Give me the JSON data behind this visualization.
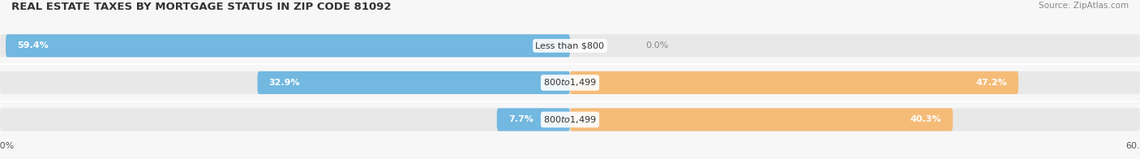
{
  "title": "REAL ESTATE TAXES BY MORTGAGE STATUS IN ZIP CODE 81092",
  "source": "Source: ZipAtlas.com",
  "categories": [
    "Less than $800",
    "$800 to $1,499",
    "$800 to $1,499"
  ],
  "without_mortgage": [
    59.4,
    32.9,
    7.7
  ],
  "with_mortgage": [
    0.0,
    47.2,
    40.3
  ],
  "xlim": 60.0,
  "blue_color": "#72b8e0",
  "orange_color": "#f5bc78",
  "bar_bg_color": "#e8e8e8",
  "bg_color": "#f7f7f7",
  "title_fontsize": 9.5,
  "source_fontsize": 7.5,
  "label_fontsize": 8,
  "cat_fontsize": 8,
  "bar_height": 0.62,
  "figsize": [
    14.06,
    1.96
  ]
}
